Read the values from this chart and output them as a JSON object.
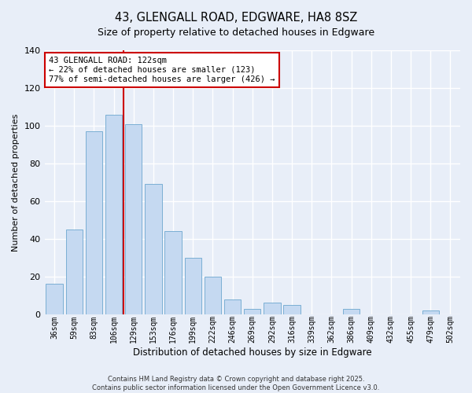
{
  "title": "43, GLENGALL ROAD, EDGWARE, HA8 8SZ",
  "subtitle": "Size of property relative to detached houses in Edgware",
  "xlabel": "Distribution of detached houses by size in Edgware",
  "ylabel": "Number of detached properties",
  "bar_labels": [
    "36sqm",
    "59sqm",
    "83sqm",
    "106sqm",
    "129sqm",
    "153sqm",
    "176sqm",
    "199sqm",
    "222sqm",
    "246sqm",
    "269sqm",
    "292sqm",
    "316sqm",
    "339sqm",
    "362sqm",
    "386sqm",
    "409sqm",
    "432sqm",
    "455sqm",
    "479sqm",
    "502sqm"
  ],
  "bar_values": [
    16,
    45,
    97,
    106,
    101,
    69,
    44,
    30,
    20,
    8,
    3,
    6,
    5,
    0,
    0,
    3,
    0,
    0,
    0,
    2,
    0
  ],
  "bar_color": "#c5d9f1",
  "bar_edge_color": "#7bafd4",
  "vline_x_index": 3.5,
  "vline_color": "#cc0000",
  "annotation_title": "43 GLENGALL ROAD: 122sqm",
  "annotation_line1": "← 22% of detached houses are smaller (123)",
  "annotation_line2": "77% of semi-detached houses are larger (426) →",
  "annotation_box_color": "#ffffff",
  "annotation_box_edge": "#cc0000",
  "ylim": [
    0,
    140
  ],
  "yticks": [
    0,
    20,
    40,
    60,
    80,
    100,
    120,
    140
  ],
  "footer_line1": "Contains HM Land Registry data © Crown copyright and database right 2025.",
  "footer_line2": "Contains public sector information licensed under the Open Government Licence v3.0.",
  "bg_color": "#e8eef8",
  "grid_color": "#ffffff"
}
